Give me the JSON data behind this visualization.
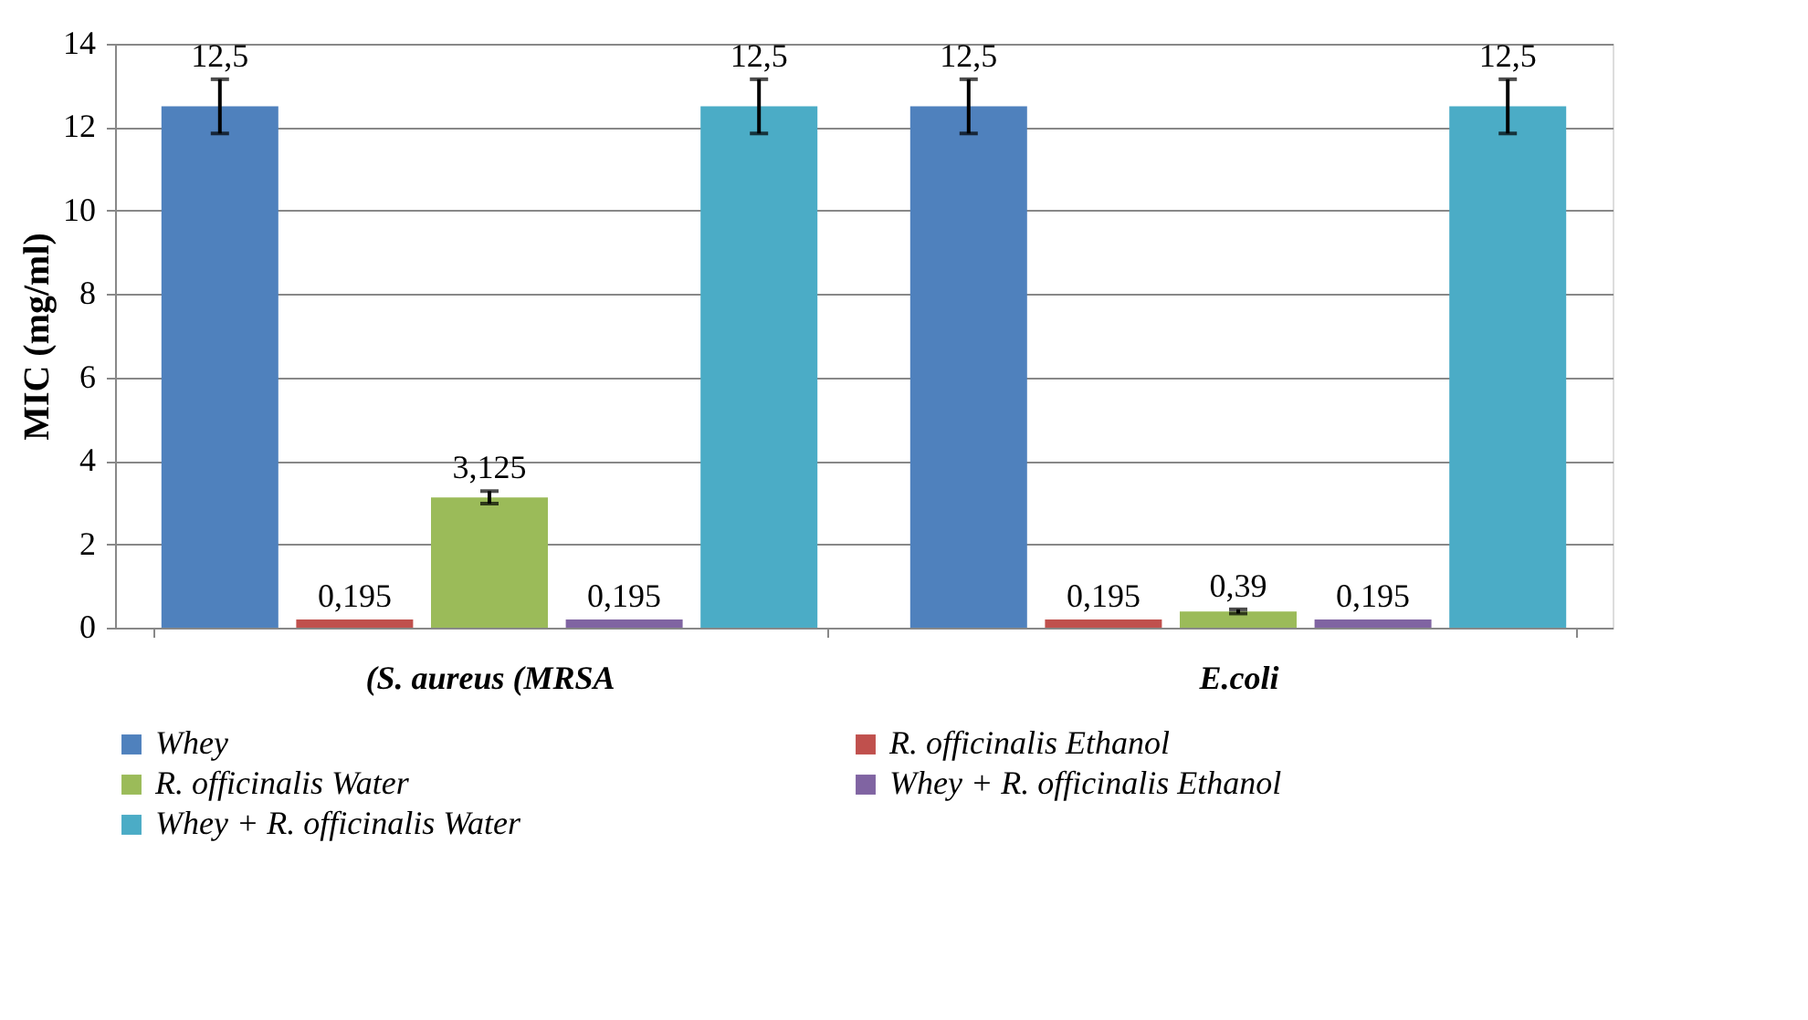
{
  "chart_data": {
    "type": "bar",
    "ylabel": "MIC (mg/ml)",
    "categories": [
      "(S. aureus (MRSA",
      "E.coli"
    ],
    "series": [
      {
        "name": "Whey",
        "color": "#4f81bd",
        "values": [
          12.5,
          12.5
        ],
        "errors": [
          0.65,
          0.65
        ],
        "value_labels": [
          "12,5",
          "12,5"
        ]
      },
      {
        "name": "R. officinalis Ethanol",
        "color": "#c0504d",
        "values": [
          0.195,
          0.195
        ],
        "value_labels": [
          "0,195",
          "0,195"
        ]
      },
      {
        "name": "R. officinalis Water",
        "color": "#9bbb59",
        "values": [
          3.125,
          0.39
        ],
        "errors": [
          0.15,
          0.05
        ],
        "value_labels": [
          "3,125",
          "0,39"
        ]
      },
      {
        "name": "Whey + R. officinalis Ethanol",
        "color": "#8064a2",
        "values": [
          0.195,
          0.195
        ],
        "value_labels": [
          "0,195",
          "0,195"
        ]
      },
      {
        "name": "Whey + R. officinalis Water",
        "color": "#4bacc6",
        "values": [
          12.5,
          12.5
        ],
        "errors": [
          0.65,
          0.65
        ],
        "value_labels": [
          "12,5",
          "12,5"
        ]
      }
    ],
    "ylim": [
      0,
      14
    ],
    "yticks": [
      0,
      2,
      4,
      6,
      8,
      10,
      12,
      14
    ],
    "grid": "y",
    "legend": "bottom"
  }
}
